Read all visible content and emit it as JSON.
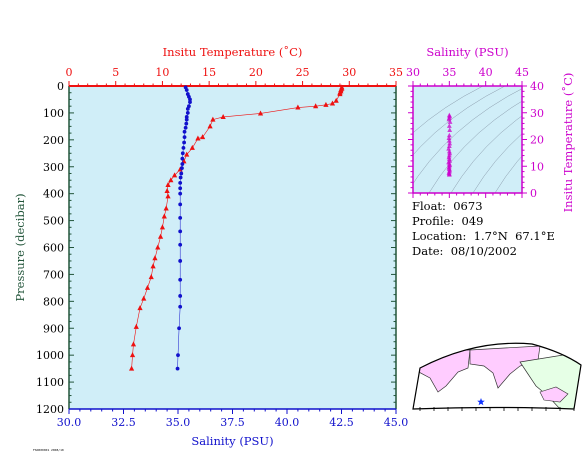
{
  "colors": {
    "plot_bg": "#d0eef8",
    "temperature": "#ee1111",
    "salinity": "#1111cc",
    "pressure_axis": "#22553a",
    "inset": "#cc00cc",
    "land": "#ffccff",
    "land_alt": "#e6ffe6"
  },
  "info": {
    "float": "Float:  0673",
    "profile": "Profile:  049",
    "location": "Location:  1.7°N  67.1°E",
    "date": "Date:  08/10/2002"
  },
  "footer": "FSD000001 2008/10",
  "chart_data": [
    {
      "type": "line",
      "title": "",
      "ylabel": "Pressure (decibar)",
      "ylim": [
        1200,
        0
      ],
      "yticks": [
        "0",
        "100",
        "200",
        "300",
        "400",
        "500",
        "600",
        "700",
        "800",
        "900",
        "1000",
        "1100",
        "1200"
      ],
      "grid": false,
      "top_axis": {
        "label": "Insitu Temperature (˚C)",
        "xlim": [
          0,
          35
        ],
        "ticks": [
          "0",
          "5",
          "10",
          "15",
          "20",
          "25",
          "30",
          "35"
        ]
      },
      "bottom_axis": {
        "label": "Salinity (PSU)",
        "xlim": [
          30,
          45
        ],
        "ticks": [
          "30.0",
          "32.5",
          "35.0",
          "37.5",
          "40.0",
          "42.5",
          "45.0"
        ]
      },
      "series": [
        {
          "axis": "top",
          "marker": "triangle",
          "points": [
            [
              29.2,
              5
            ],
            [
              29.2,
              10
            ],
            [
              29.1,
              15
            ],
            [
              29.1,
              20
            ],
            [
              29.0,
              25
            ],
            [
              29.0,
              30
            ],
            [
              28.6,
              55
            ],
            [
              28.2,
              65
            ],
            [
              27.5,
              70
            ],
            [
              26.4,
              75
            ],
            [
              24.5,
              80
            ],
            [
              20.5,
              102
            ],
            [
              16.5,
              115
            ],
            [
              15.4,
              125
            ],
            [
              15.1,
              150
            ],
            [
              14.3,
              190
            ],
            [
              13.8,
              195
            ],
            [
              13.2,
              230
            ],
            [
              12.6,
              255
            ],
            [
              12.3,
              280
            ],
            [
              11.9,
              310
            ],
            [
              11.3,
              332
            ],
            [
              10.9,
              350
            ],
            [
              10.6,
              368
            ],
            [
              10.5,
              390
            ],
            [
              10.6,
              410
            ],
            [
              10.4,
              455
            ],
            [
              10.2,
              485
            ],
            [
              10.0,
              525
            ],
            [
              9.8,
              560
            ],
            [
              9.5,
              600
            ],
            [
              9.2,
              640
            ],
            [
              9.0,
              670
            ],
            [
              8.8,
              710
            ],
            [
              8.4,
              750
            ],
            [
              8.0,
              790
            ],
            [
              7.6,
              825
            ],
            [
              7.2,
              895
            ],
            [
              6.9,
              960
            ],
            [
              6.8,
              1000
            ],
            [
              6.7,
              1050
            ]
          ]
        },
        {
          "axis": "bottom",
          "marker": "circle",
          "points": [
            [
              35.35,
              5
            ],
            [
              35.4,
              15
            ],
            [
              35.45,
              30
            ],
            [
              35.5,
              40
            ],
            [
              35.55,
              50
            ],
            [
              35.55,
              60
            ],
            [
              35.5,
              75
            ],
            [
              35.45,
              85
            ],
            [
              35.45,
              100
            ],
            [
              35.4,
              115
            ],
            [
              35.4,
              125
            ],
            [
              35.38,
              140
            ],
            [
              35.35,
              155
            ],
            [
              35.3,
              170
            ],
            [
              35.3,
              190
            ],
            [
              35.28,
              210
            ],
            [
              35.25,
              230
            ],
            [
              35.22,
              250
            ],
            [
              35.2,
              270
            ],
            [
              35.2,
              290
            ],
            [
              35.18,
              305
            ],
            [
              35.15,
              325
            ],
            [
              35.12,
              340
            ],
            [
              35.1,
              360
            ],
            [
              35.1,
              380
            ],
            [
              35.1,
              400
            ],
            [
              35.1,
              440
            ],
            [
              35.1,
              490
            ],
            [
              35.1,
              540
            ],
            [
              35.1,
              590
            ],
            [
              35.1,
              650
            ],
            [
              35.1,
              720
            ],
            [
              35.1,
              780
            ],
            [
              35.1,
              820
            ],
            [
              35.05,
              900
            ],
            [
              35.0,
              1000
            ],
            [
              34.98,
              1050
            ]
          ]
        }
      ]
    },
    {
      "type": "scatter",
      "title": "",
      "xlabel": "Salinity (PSU)",
      "ylabel": "Insitu Temperature (˚C)",
      "xlim": [
        30,
        45
      ],
      "ylim": [
        0,
        40
      ],
      "xticks": [
        "30",
        "35",
        "40",
        "45"
      ],
      "yticks": [
        "0",
        "10",
        "20",
        "30",
        "40"
      ],
      "points": [
        [
          35.0,
          29.0
        ],
        [
          35.05,
          28.6
        ],
        [
          35.0,
          28.0
        ],
        [
          34.95,
          27.5
        ],
        [
          35.1,
          26.5
        ],
        [
          35.0,
          25.0
        ],
        [
          35.05,
          23.5
        ],
        [
          35.0,
          21.5
        ],
        [
          34.95,
          20.5
        ],
        [
          35.0,
          19.5
        ],
        [
          35.05,
          18.5
        ],
        [
          35.0,
          17.5
        ],
        [
          34.9,
          16.5
        ],
        [
          35.0,
          15.5
        ],
        [
          35.05,
          14.8
        ],
        [
          35.0,
          14.0
        ],
        [
          34.95,
          13.3
        ],
        [
          35.0,
          12.6
        ],
        [
          35.05,
          12.0
        ],
        [
          34.9,
          11.4
        ],
        [
          35.0,
          10.9
        ],
        [
          35.05,
          10.4
        ],
        [
          35.0,
          9.9
        ],
        [
          34.95,
          9.4
        ],
        [
          35.0,
          8.9
        ],
        [
          35.05,
          8.4
        ],
        [
          35.0,
          7.9
        ],
        [
          34.95,
          7.4
        ],
        [
          35.0,
          7.0
        ],
        [
          35.0,
          6.8
        ]
      ]
    }
  ]
}
